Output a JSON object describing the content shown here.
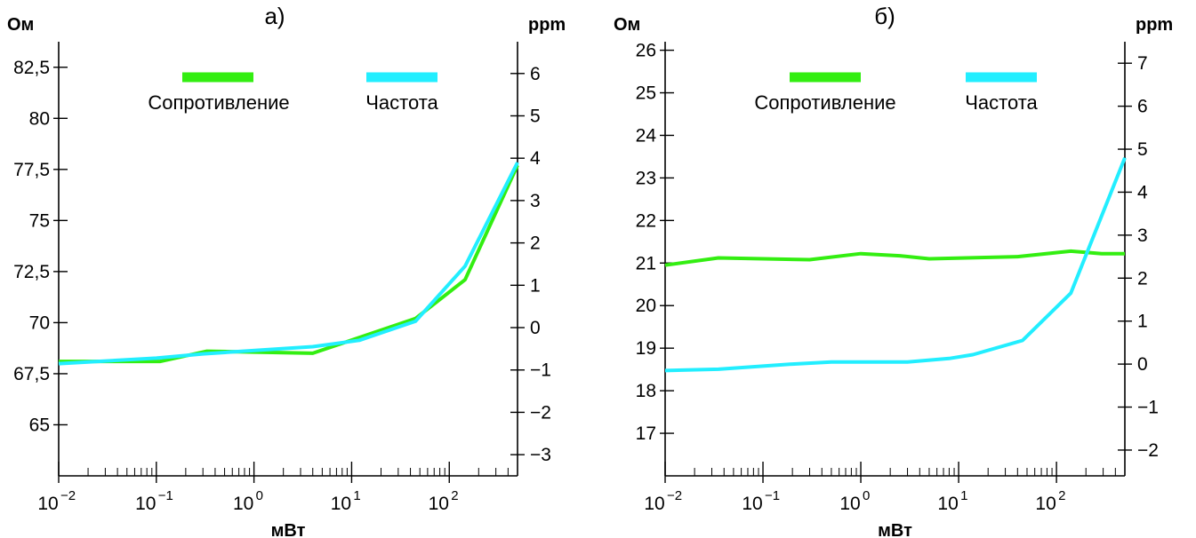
{
  "chart_data": [
    {
      "panel": "a",
      "type": "line",
      "title": "а)",
      "xlabel": "мВт",
      "ylabel_left": "Ом",
      "ylabel_right": "ppm",
      "xscale": "log",
      "xlim": [
        0.01,
        500
      ],
      "ylim_left": [
        62.5,
        83.75
      ],
      "ylim_right": [
        -3.5,
        6.75
      ],
      "xticks": [
        0.01,
        0.1,
        1,
        10,
        100
      ],
      "xtick_labels": [
        {
          "base": "10",
          "exp": "−2"
        },
        {
          "base": "10",
          "exp": "−1"
        },
        {
          "base": "10",
          "exp": "0"
        },
        {
          "base": "10",
          "exp": "1"
        },
        {
          "base": "10",
          "exp": "2"
        }
      ],
      "yticks_left": [
        65,
        67.5,
        70,
        72.5,
        75,
        77.5,
        80,
        82.5
      ],
      "ytick_labels_left": [
        "65",
        "67,5",
        "70",
        "72,5",
        "75",
        "77,5",
        "80",
        "82,5"
      ],
      "yticks_right": [
        -3,
        -2,
        -1,
        0,
        1,
        2,
        3,
        4,
        5,
        6
      ],
      "ytick_labels_right": [
        "−3",
        "−2",
        "−1",
        "0",
        "1",
        "2",
        "3",
        "4",
        "5",
        "6"
      ],
      "series": [
        {
          "name": "Сопротивление",
          "axis": "left",
          "color": "#33ee11",
          "x": [
            0.01,
            0.11,
            0.33,
            4,
            45,
            145,
            500
          ],
          "y": [
            68.1,
            68.1,
            68.6,
            68.5,
            70.2,
            72.1,
            77.7
          ]
        },
        {
          "name": "Частота",
          "axis": "right",
          "color": "#22eeff",
          "x": [
            0.01,
            0.1,
            0.3,
            4,
            12,
            45,
            145,
            500
          ],
          "y": [
            -0.85,
            -0.72,
            -0.62,
            -0.45,
            -0.3,
            0.15,
            1.45,
            3.9
          ]
        }
      ]
    },
    {
      "panel": "b",
      "type": "line",
      "title": "б)",
      "xlabel": "мВт",
      "ylabel_left": "Ом",
      "ylabel_right": "ppm",
      "xscale": "log",
      "xlim": [
        0.01,
        500
      ],
      "ylim_left": [
        16,
        26.2
      ],
      "ylim_right": [
        -2.6,
        7.5
      ],
      "xticks": [
        0.01,
        0.1,
        1,
        10,
        100
      ],
      "xtick_labels": [
        {
          "base": "10",
          "exp": "−2"
        },
        {
          "base": "10",
          "exp": "−1"
        },
        {
          "base": "10",
          "exp": "0"
        },
        {
          "base": "10",
          "exp": "1"
        },
        {
          "base": "10",
          "exp": "2"
        }
      ],
      "yticks_left": [
        17,
        18,
        19,
        20,
        21,
        22,
        23,
        24,
        25,
        26
      ],
      "ytick_labels_left": [
        "17",
        "18",
        "19",
        "20",
        "21",
        "22",
        "23",
        "24",
        "25",
        "26"
      ],
      "yticks_right": [
        -2,
        -1,
        0,
        1,
        2,
        3,
        4,
        5,
        6,
        7
      ],
      "ytick_labels_right": [
        "−2",
        "−1",
        "0",
        "1",
        "2",
        "3",
        "4",
        "5",
        "6",
        "7"
      ],
      "series": [
        {
          "name": "Сопротивление",
          "axis": "left",
          "color": "#33ee11",
          "x": [
            0.01,
            0.035,
            0.3,
            1,
            2.5,
            5,
            12,
            40,
            140,
            290,
            500
          ],
          "y": [
            20.95,
            21.12,
            21.08,
            21.22,
            21.17,
            21.1,
            21.12,
            21.15,
            21.28,
            21.22,
            21.22
          ]
        },
        {
          "name": "Частота",
          "axis": "right",
          "color": "#22eeff",
          "x": [
            0.01,
            0.035,
            0.2,
            0.5,
            3,
            8,
            14,
            45,
            140,
            500
          ],
          "y": [
            -0.15,
            -0.12,
            0.0,
            0.05,
            0.05,
            0.13,
            0.22,
            0.55,
            1.65,
            4.8
          ]
        }
      ]
    }
  ]
}
